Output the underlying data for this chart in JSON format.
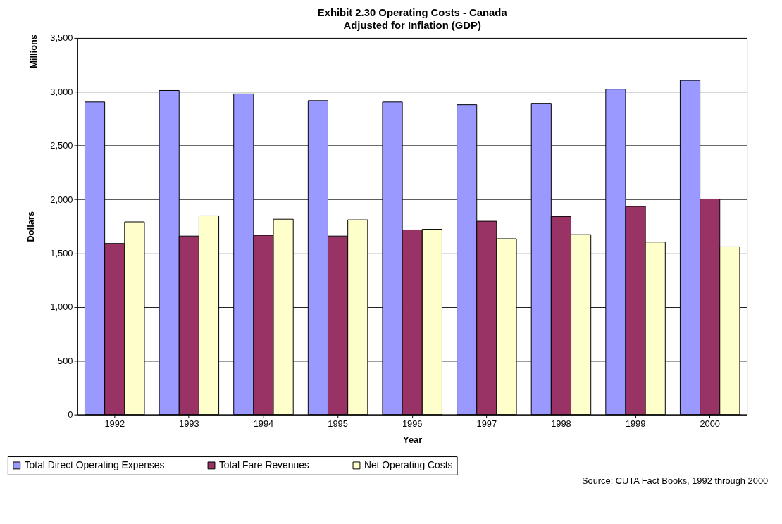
{
  "chart_data": {
    "type": "bar",
    "title": "Exhibit 2.30  Operating Costs - Canada",
    "subtitle": "Adjusted for Inflation (GDP)",
    "xlabel": "Year",
    "ylabel": "Dollars",
    "annotations": [
      "Millions",
      "Source: CUTA Fact Books, 1992 through 2000"
    ],
    "categories": [
      "1992",
      "1993",
      "1994",
      "1995",
      "1996",
      "1997",
      "1998",
      "1999",
      "2000"
    ],
    "series": [
      {
        "name": "Total Direct Operating Expenses",
        "color": "#9999ff",
        "values": [
          2905,
          3012,
          2980,
          2918,
          2905,
          2880,
          2893,
          3024,
          3106
        ]
      },
      {
        "name": "Total Fare Revenues",
        "color": "#993366",
        "values": [
          1590,
          1659,
          1666,
          1659,
          1716,
          1797,
          1841,
          1935,
          2004
        ]
      },
      {
        "name": "Net Operating Costs",
        "color": "#ffffcc",
        "values": [
          1791,
          1847,
          1816,
          1810,
          1722,
          1634,
          1672,
          1603,
          1559
        ]
      }
    ],
    "ylim": [
      0,
      3500
    ],
    "yticks": [
      {
        "value": 0,
        "label": "0"
      },
      {
        "value": 500,
        "label": "500"
      },
      {
        "value": 1000,
        "label": "1,000"
      },
      {
        "value": 1500,
        "label": "1,500"
      },
      {
        "value": 2000,
        "label": "2,000"
      },
      {
        "value": 2500,
        "label": "2,500"
      },
      {
        "value": 3000,
        "label": "3,000"
      },
      {
        "value": 3500,
        "label": "3,500"
      }
    ],
    "grid": "y",
    "legend": "bottom"
  }
}
